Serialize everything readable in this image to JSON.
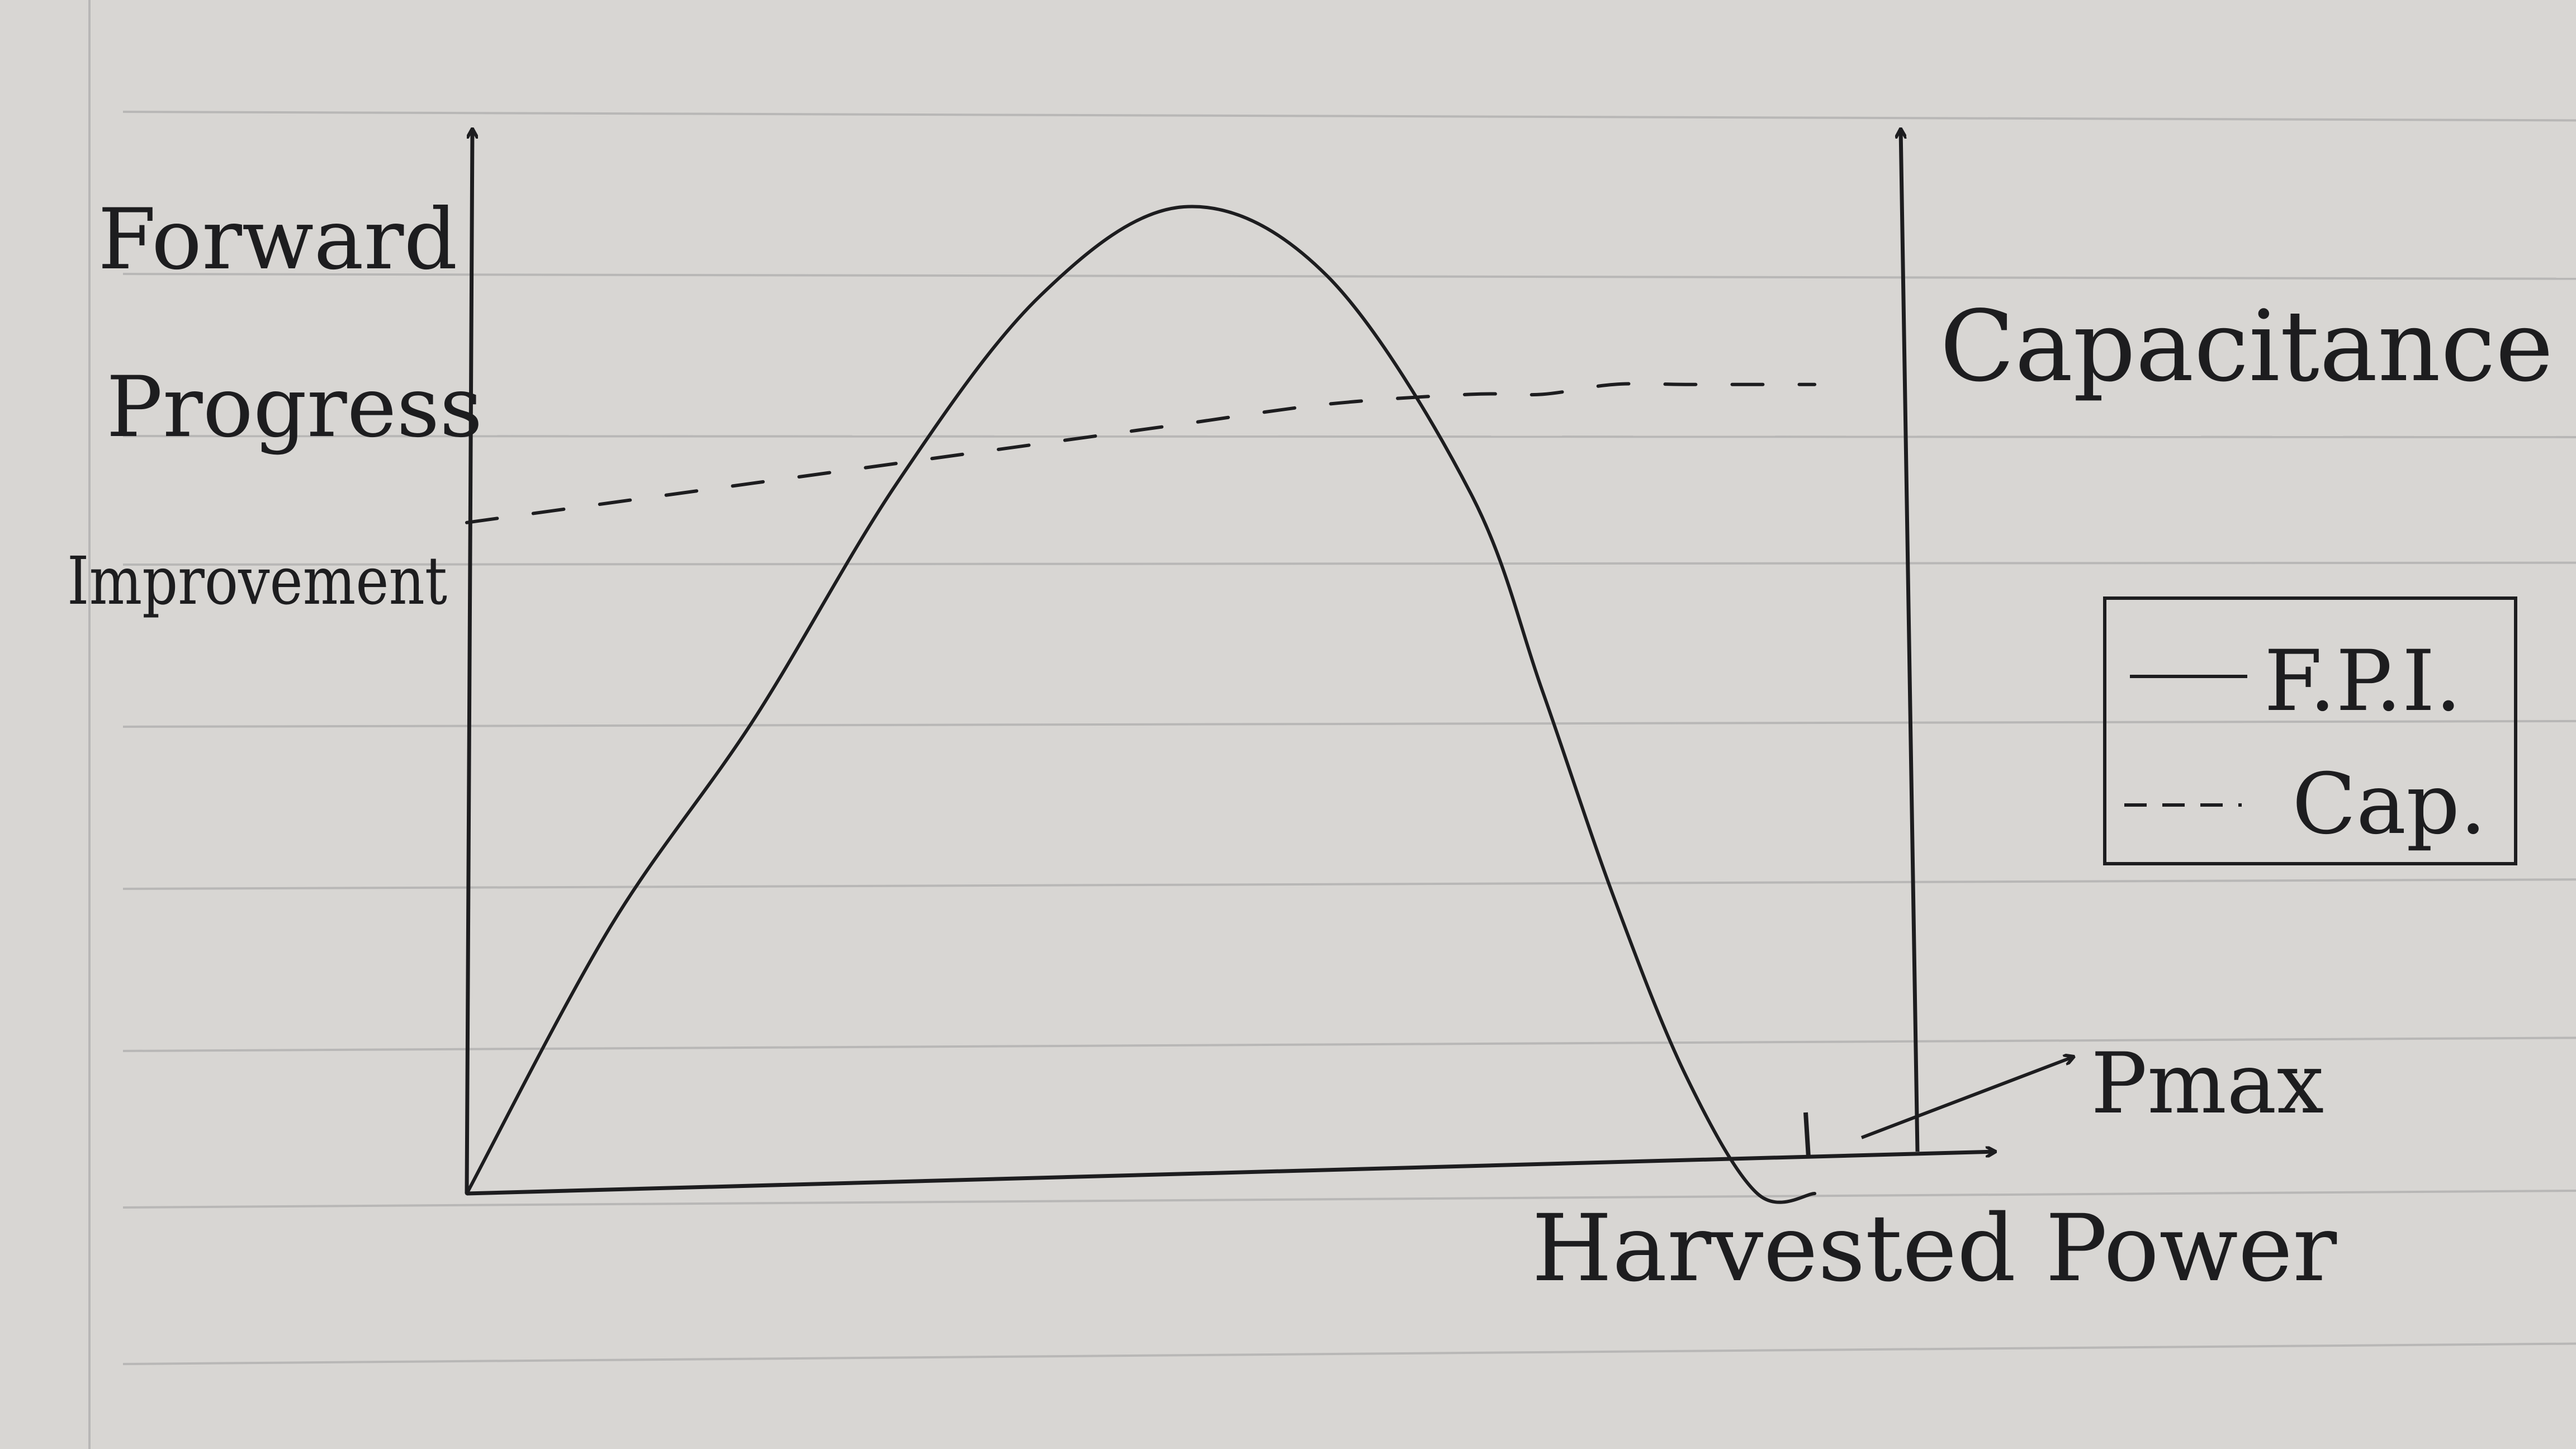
{
  "chart_data": {
    "type": "line",
    "hand_drawn": true,
    "background": "lined notebook paper",
    "x_axis": {
      "label": "Harvested Power",
      "tick_labels": [
        "Pmax"
      ]
    },
    "y_axis_left": {
      "label_lines": [
        "Forward",
        "Progress",
        "Improvement"
      ]
    },
    "y_axis_right": {
      "label": "Capacitance"
    },
    "grid": true,
    "legend": {
      "position": "right",
      "entries": [
        {
          "label": "F.P.I.",
          "style": "solid"
        },
        {
          "label": "Cap.",
          "style": "dashed"
        }
      ]
    },
    "x": [
      0,
      0.1,
      0.2,
      0.3,
      0.4,
      0.5,
      0.6,
      0.7,
      0.75,
      0.8,
      0.85,
      0.9,
      0.94
    ],
    "series": [
      {
        "name": "F.P.I.",
        "style": "solid",
        "axis": "left",
        "values": [
          0,
          0.27,
          0.48,
          0.72,
          0.91,
          1.0,
          0.93,
          0.71,
          0.51,
          0.3,
          0.12,
          0.0,
          0.0
        ]
      },
      {
        "name": "Cap.",
        "style": "dashed",
        "axis": "right",
        "values": [
          0.68,
          0.7,
          0.72,
          0.74,
          0.76,
          0.78,
          0.8,
          0.81,
          0.81,
          0.82,
          0.82,
          0.82,
          0.82
        ]
      }
    ],
    "colors": {
      "ink": "#1d1d1f",
      "paper": "#d8d6d3",
      "rule": "#b8b7b6"
    }
  }
}
